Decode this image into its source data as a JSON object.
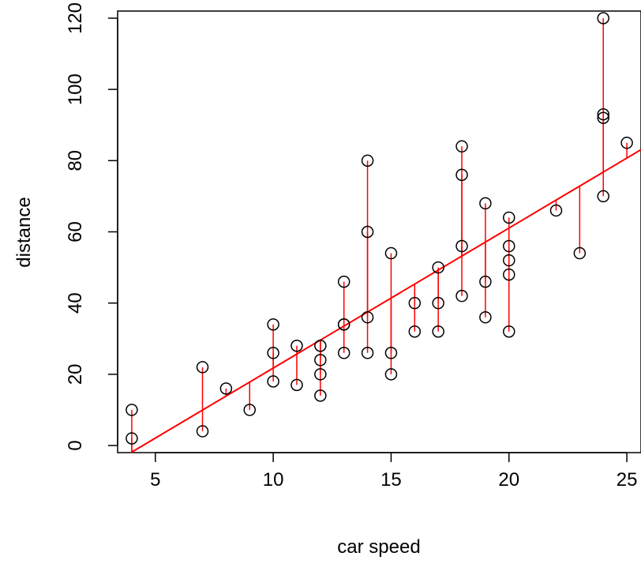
{
  "chart_data": {
    "type": "scatter",
    "title": "",
    "xlabel": "car speed",
    "ylabel": "distance",
    "xlim": [
      3.4,
      25.6
    ],
    "ylim": [
      -2.0,
      122.0
    ],
    "xticks": [
      5,
      10,
      15,
      20,
      25
    ],
    "yticks": [
      0,
      20,
      40,
      60,
      80,
      100,
      120
    ],
    "grid": false,
    "legend": "none",
    "colors": {
      "points": "#000000",
      "fit_line": "#ff0000",
      "residuals": "#ff0000"
    },
    "points": {
      "x": [
        4,
        4,
        7,
        7,
        8,
        9,
        10,
        10,
        10,
        11,
        11,
        12,
        12,
        12,
        12,
        13,
        13,
        13,
        13,
        14,
        14,
        14,
        14,
        15,
        15,
        15,
        16,
        16,
        17,
        17,
        17,
        18,
        18,
        18,
        18,
        19,
        19,
        19,
        20,
        20,
        20,
        20,
        20,
        22,
        23,
        24,
        24,
        24,
        24,
        25
      ],
      "y": [
        2,
        10,
        4,
        22,
        16,
        10,
        18,
        26,
        34,
        17,
        28,
        14,
        20,
        24,
        28,
        26,
        34,
        34,
        46,
        26,
        36,
        60,
        80,
        20,
        26,
        54,
        32,
        40,
        32,
        40,
        50,
        42,
        56,
        76,
        84,
        36,
        46,
        68,
        32,
        48,
        52,
        56,
        64,
        66,
        54,
        70,
        92,
        93,
        120,
        85
      ]
    },
    "fit": {
      "intercept": -17.579,
      "slope": 3.932
    },
    "residual_segments": true
  }
}
